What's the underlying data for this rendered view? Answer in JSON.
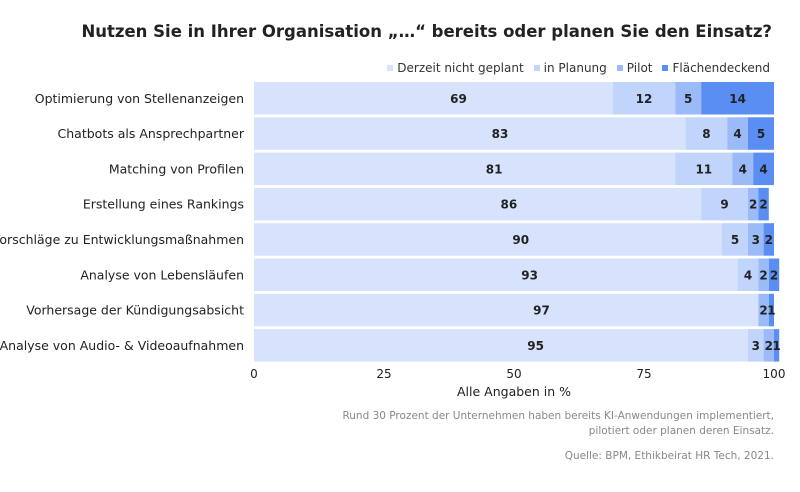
{
  "chart_data": {
    "type": "bar",
    "orientation": "horizontal",
    "stacked": true,
    "title": "Nutzen Sie in Ihrer Organisation „…“ bereits oder planen Sie den Einsatz?",
    "categories": [
      "Optimierung von Stellenanzeigen",
      "Chatbots als Ansprechpartner",
      "Matching von Profilen",
      "Erstellung eines Rankings",
      "Vorschläge zu Entwicklungsmaßnahmen",
      "Analyse von Lebensläufen",
      "Vorhersage der Kündigungsabsicht",
      "Analyse von Audio- & Videoaufnahmen"
    ],
    "series": [
      {
        "name": "Derzeit nicht geplant",
        "color": "#d7e3fc",
        "values": [
          69,
          83,
          81,
          86,
          90,
          93,
          97,
          95
        ]
      },
      {
        "name": "in Planung",
        "color": "#c1d4fb",
        "values": [
          12,
          8,
          11,
          9,
          5,
          4,
          0,
          3
        ]
      },
      {
        "name": "Pilot",
        "color": "#9bbaf8",
        "values": [
          5,
          4,
          4,
          2,
          3,
          2,
          2,
          2
        ]
      },
      {
        "name": "Flächendeckend",
        "color": "#5b8ef3",
        "values": [
          14,
          5,
          4,
          2,
          2,
          2,
          1,
          1
        ]
      }
    ],
    "xlabel": "Alle Angaben in %",
    "xlim": [
      0,
      100
    ],
    "xticks": [
      "0",
      "25",
      "50",
      "75",
      "100"
    ],
    "legend_position": "top-right",
    "grid": false
  },
  "footnote": {
    "line1": "Rund 30 Prozent der Unternehmen haben bereits KI-Anwendungen implementiert,",
    "line2": "pilotiert oder planen deren Einsatz."
  },
  "source": "Quelle: BPM, Ethikbeirat HR Tech, 2021."
}
